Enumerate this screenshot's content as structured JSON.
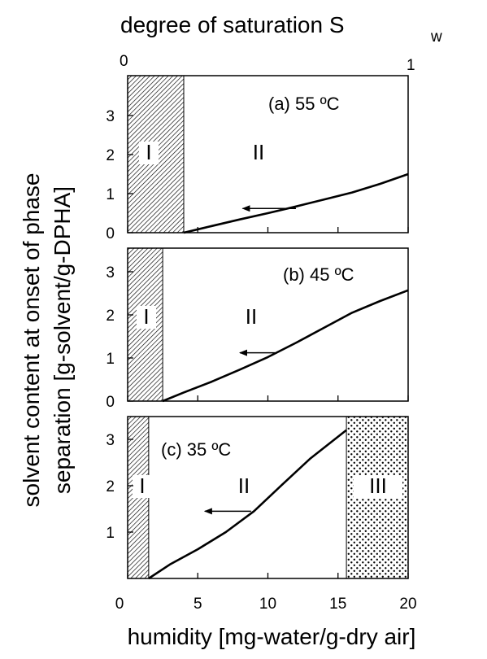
{
  "chart_data": {
    "type": "line",
    "top_axis": {
      "title": "degree of saturation S",
      "title_subscript": "w",
      "ticks": [
        "0",
        "1"
      ],
      "range": [
        0,
        1
      ]
    },
    "x_axis": {
      "label": "humidity [mg-water/g-dry air]",
      "range": [
        0,
        20
      ],
      "ticks": [
        0,
        5,
        10,
        15,
        20
      ],
      "tick_labels": [
        "0",
        "5",
        "10",
        "15",
        "20"
      ]
    },
    "y_axis": {
      "label_line1": "solvent content at onset of phase",
      "label_line2": "separation [g-solvent/g-DPHA]",
      "range": [
        0,
        3.5
      ],
      "ticks": [
        0,
        1,
        2,
        3
      ]
    },
    "panels": [
      {
        "title": "(a) 55 ºC",
        "y_tick_labels": [
          "0",
          "1",
          "2",
          "3"
        ],
        "regions": [
          {
            "name": "I",
            "x_range": [
              0,
              4.0
            ],
            "pattern": "diagonal-hatch"
          },
          {
            "name": "II",
            "x_range": [
              4.0,
              20
            ],
            "pattern": "none"
          }
        ],
        "series": {
          "x": [
            4.0,
            6,
            8,
            10,
            12,
            14,
            16,
            18,
            20
          ],
          "y": [
            0.0,
            0.17,
            0.34,
            0.5,
            0.67,
            0.85,
            1.03,
            1.25,
            1.5
          ]
        },
        "arrow": {
          "from": [
            12.0,
            0.62
          ],
          "to": [
            8.2,
            0.62
          ]
        }
      },
      {
        "title": "(b) 45 ºC",
        "y_tick_labels": [
          "0",
          "1",
          "2",
          "3"
        ],
        "regions": [
          {
            "name": "I",
            "x_range": [
              0,
              2.5
            ],
            "pattern": "diagonal-hatch"
          },
          {
            "name": "II",
            "x_range": [
              2.5,
              20
            ],
            "pattern": "none"
          }
        ],
        "series": {
          "x": [
            2.5,
            4,
            6,
            8,
            10,
            12,
            14,
            16,
            18,
            20
          ],
          "y": [
            0.0,
            0.2,
            0.45,
            0.73,
            1.02,
            1.35,
            1.7,
            2.05,
            2.32,
            2.57
          ]
        },
        "arrow": {
          "from": [
            10.5,
            1.12
          ],
          "to": [
            8.0,
            1.12
          ]
        }
      },
      {
        "title": "(c) 35 ºC",
        "y_tick_labels": [
          "1",
          "2",
          "3"
        ],
        "regions": [
          {
            "name": "I",
            "x_range": [
              0,
              1.5
            ],
            "pattern": "diagonal-hatch"
          },
          {
            "name": "II",
            "x_range": [
              1.5,
              15.6
            ],
            "pattern": "none"
          },
          {
            "name": "III",
            "x_range": [
              15.6,
              20
            ],
            "pattern": "dots"
          }
        ],
        "series": {
          "x": [
            1.5,
            3,
            5,
            7,
            9,
            11,
            13,
            15.6
          ],
          "y": [
            0.0,
            0.3,
            0.63,
            1.0,
            1.45,
            2.02,
            2.58,
            3.2
          ]
        },
        "arrow": {
          "from": [
            8.8,
            1.45
          ],
          "to": [
            5.5,
            1.45
          ]
        }
      }
    ],
    "grid": false,
    "colors": {
      "line": "#000000",
      "background": "#ffffff"
    }
  }
}
